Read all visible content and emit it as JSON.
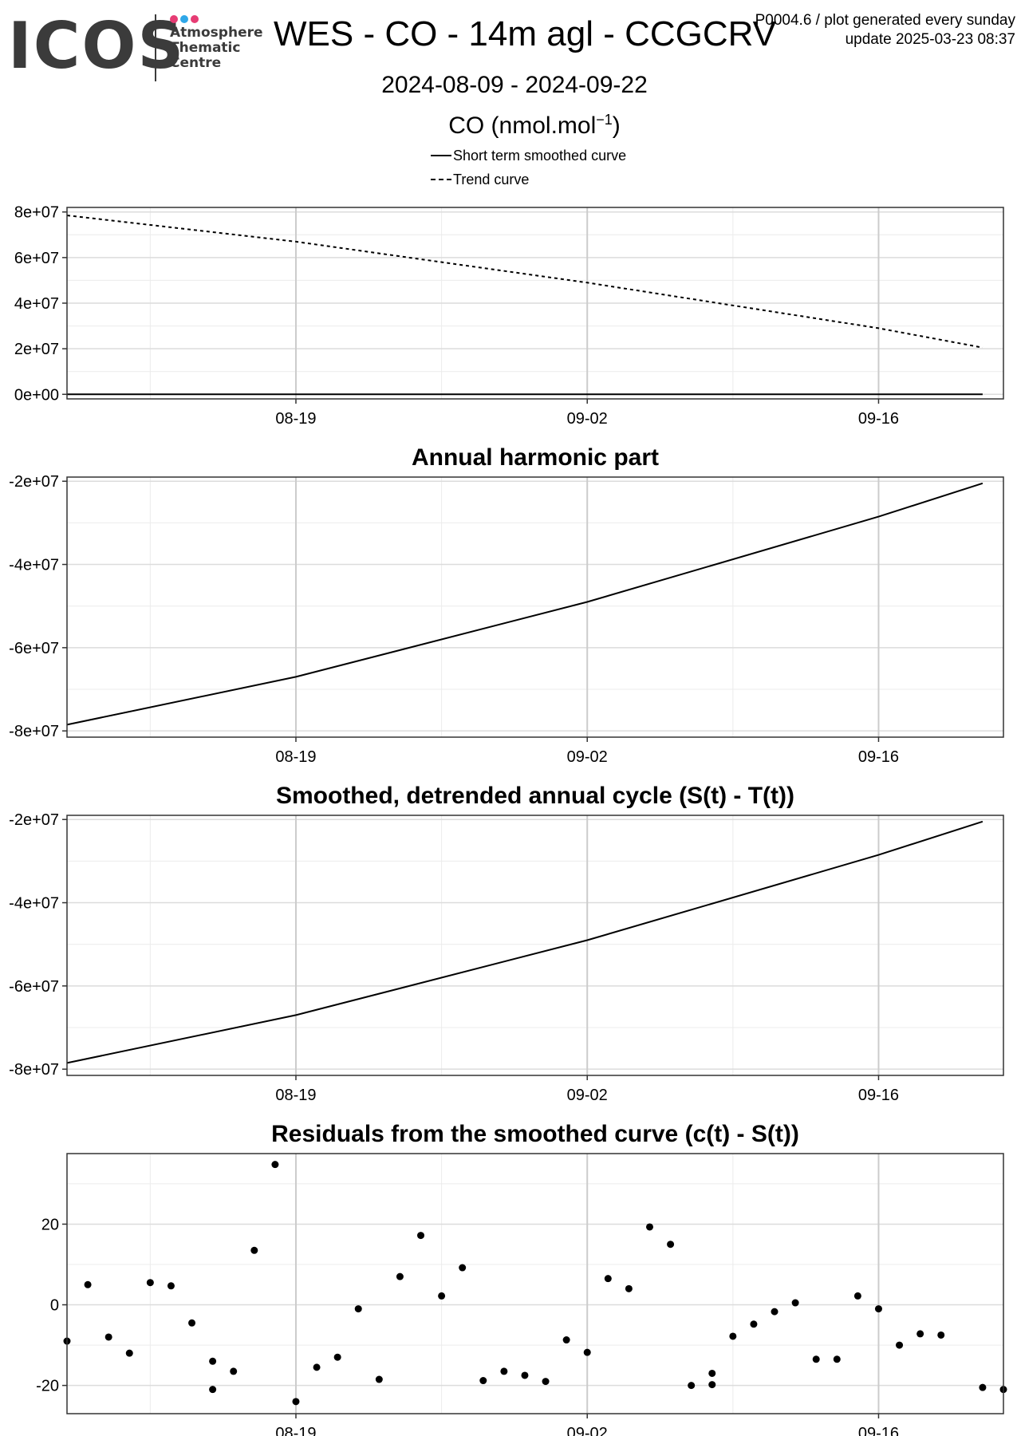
{
  "header": {
    "logo_word": "ICOS",
    "logo_lines": [
      "Atmosphere",
      "Thematic",
      "Centre"
    ],
    "logo_dot_colors": [
      "#e63c74",
      "#2fa7e8",
      "#e63c74"
    ],
    "title": "WES - CO - 14m agl - CCGCRV",
    "date_range": "2024-08-09 - 2024-09-22",
    "unit_label": "CO (nmol.mol",
    "unit_exponent": "−1",
    "unit_close": ")",
    "meta_line1": "P0004.6 / plot generated every sunday",
    "meta_line2": "update  2025-03-23 08:37"
  },
  "legend": {
    "smoothed_label": "Short term smoothed curve",
    "trend_label": "Trend curve"
  },
  "chart_data": [
    {
      "type": "line",
      "title": "",
      "x_ticks": [
        "08-19",
        "09-02",
        "09-16"
      ],
      "x_range": [
        "2024-08-08",
        "2024-09-22"
      ],
      "y_ticks": [
        "0e+00",
        "2e+07",
        "4e+07",
        "6e+07",
        "8e+07"
      ],
      "y_tick_values": [
        0,
        20000000,
        40000000,
        60000000,
        80000000
      ],
      "ylim": [
        -2000000,
        82000000
      ],
      "grid": true,
      "legend_position": "top",
      "series": [
        {
          "name": "Short term smoothed curve",
          "style": "solid",
          "color": "#000000",
          "x": [
            "2024-08-08",
            "2024-09-21"
          ],
          "y": [
            0,
            0
          ]
        },
        {
          "name": "Trend curve",
          "style": "dashed",
          "color": "#000000",
          "x": [
            "2024-08-08",
            "2024-08-19",
            "2024-09-02",
            "2024-09-16",
            "2024-09-21"
          ],
          "y": [
            78500000,
            67000000,
            49000000,
            29000000,
            20500000
          ]
        }
      ]
    },
    {
      "type": "line",
      "title": "Annual harmonic part",
      "x_ticks": [
        "08-19",
        "09-02",
        "09-16"
      ],
      "x_range": [
        "2024-08-08",
        "2024-09-22"
      ],
      "y_ticks": [
        "-2e+07",
        "-4e+07",
        "-6e+07",
        "-8e+07"
      ],
      "y_tick_values": [
        -20000000,
        -40000000,
        -60000000,
        -80000000
      ],
      "ylim": [
        -81500000,
        -19000000
      ],
      "grid": true,
      "series": [
        {
          "style": "solid",
          "color": "#000000",
          "x": [
            "2024-08-08",
            "2024-08-19",
            "2024-09-02",
            "2024-09-16",
            "2024-09-21"
          ],
          "y": [
            -78500000,
            -67000000,
            -49000000,
            -28500000,
            -20500000
          ]
        }
      ]
    },
    {
      "type": "line",
      "title": "Smoothed, detrended annual cycle (S(t) - T(t))",
      "x_ticks": [
        "08-19",
        "09-02",
        "09-16"
      ],
      "x_range": [
        "2024-08-08",
        "2024-09-22"
      ],
      "y_ticks": [
        "-2e+07",
        "-4e+07",
        "-6e+07",
        "-8e+07"
      ],
      "y_tick_values": [
        -20000000,
        -40000000,
        -60000000,
        -80000000
      ],
      "ylim": [
        -81500000,
        -19000000
      ],
      "grid": true,
      "series": [
        {
          "style": "solid",
          "color": "#000000",
          "x": [
            "2024-08-08",
            "2024-08-19",
            "2024-09-02",
            "2024-09-16",
            "2024-09-21"
          ],
          "y": [
            -78500000,
            -67000000,
            -49000000,
            -28500000,
            -20500000
          ]
        }
      ]
    },
    {
      "type": "scatter",
      "title": "Residuals from the smoothed curve (c(t) - S(t))",
      "x_ticks": [
        "08-19",
        "09-02",
        "09-16"
      ],
      "x_range": [
        "2024-08-08",
        "2024-09-22"
      ],
      "y_ticks": [
        "20",
        "0",
        "-20"
      ],
      "y_tick_values": [
        20,
        0,
        -20
      ],
      "ylim": [
        -27,
        37.5
      ],
      "grid": true,
      "series": [
        {
          "style": "points",
          "color": "#000000",
          "x": [
            "2024-08-08",
            "2024-08-09",
            "2024-08-10",
            "2024-08-11",
            "2024-08-12",
            "2024-08-13",
            "2024-08-14",
            "2024-08-15",
            "2024-08-15",
            "2024-08-16",
            "2024-08-17",
            "2024-08-18",
            "2024-08-19",
            "2024-08-20",
            "2024-08-21",
            "2024-08-22",
            "2024-08-23",
            "2024-08-24",
            "2024-08-25",
            "2024-08-26",
            "2024-08-27",
            "2024-08-28",
            "2024-08-29",
            "2024-08-30",
            "2024-08-31",
            "2024-09-01",
            "2024-09-02",
            "2024-09-03",
            "2024-09-04",
            "2024-09-05",
            "2024-09-06",
            "2024-09-07",
            "2024-09-08",
            "2024-09-08",
            "2024-09-09",
            "2024-09-10",
            "2024-09-11",
            "2024-09-12",
            "2024-09-13",
            "2024-09-14",
            "2024-09-15",
            "2024-09-16",
            "2024-09-17",
            "2024-09-18",
            "2024-09-19",
            "2024-09-21",
            "2024-09-22"
          ],
          "y": [
            -9,
            5,
            -8,
            -12,
            5.5,
            4.7,
            -4.5,
            -14,
            -21,
            -16.5,
            13.5,
            34.8,
            -24,
            -15.5,
            -13,
            -1,
            -18.5,
            7,
            17.2,
            2.2,
            9.2,
            -18.8,
            -16.5,
            -17.5,
            -19,
            -8.7,
            -11.8,
            6.5,
            4,
            19.3,
            15,
            -20,
            -19.8,
            -17,
            -7.8,
            -4.8,
            -1.7,
            0.5,
            -13.5,
            -13.5,
            2.2,
            -1,
            -10,
            -7.2,
            -7.5,
            -20.5,
            -21
          ]
        }
      ]
    }
  ]
}
